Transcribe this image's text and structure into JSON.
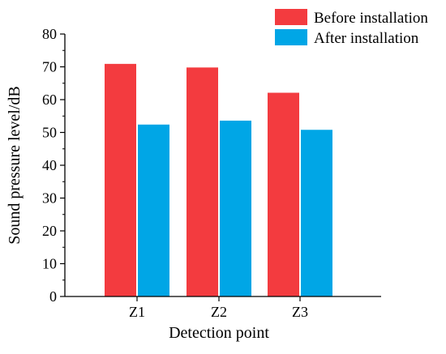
{
  "chart_data": {
    "type": "bar",
    "title": "",
    "xlabel": "Detection point",
    "ylabel": "Sound pressure level/dB",
    "categories": [
      "Z1",
      "Z2",
      "Z3"
    ],
    "ylim": [
      0,
      80
    ],
    "yticks": [
      0,
      10,
      20,
      30,
      40,
      50,
      60,
      70,
      80
    ],
    "grid": false,
    "legend_position": "top-right",
    "series": [
      {
        "name": "Before installation",
        "color": "#f33b3f",
        "values": [
          70.9,
          69.8,
          62.1
        ]
      },
      {
        "name": "After installation",
        "color": "#00a6e6",
        "values": [
          52.4,
          53.6,
          50.8
        ]
      }
    ]
  }
}
